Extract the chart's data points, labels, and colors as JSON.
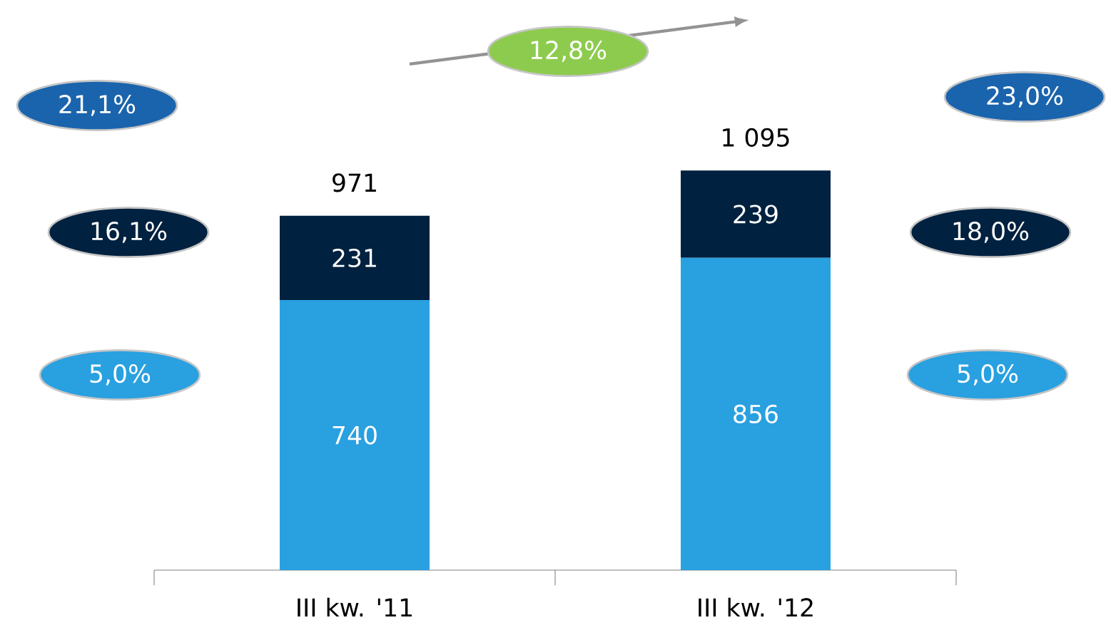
{
  "chart_data": {
    "type": "bar",
    "stacked": true,
    "categories": [
      "III kw. '11",
      "III kw. '12"
    ],
    "series": [
      {
        "color": "#29a0e0",
        "values": [
          740,
          856
        ]
      },
      {
        "color": "#00213f",
        "values": [
          231,
          239
        ]
      }
    ],
    "data_labels": true,
    "totals": [
      "971",
      "1 095"
    ],
    "annotations": [
      "21,1%",
      "16,1%",
      "5,0%",
      "23,0%",
      "18,0%",
      "5,0%",
      "12,8%"
    ]
  }
}
